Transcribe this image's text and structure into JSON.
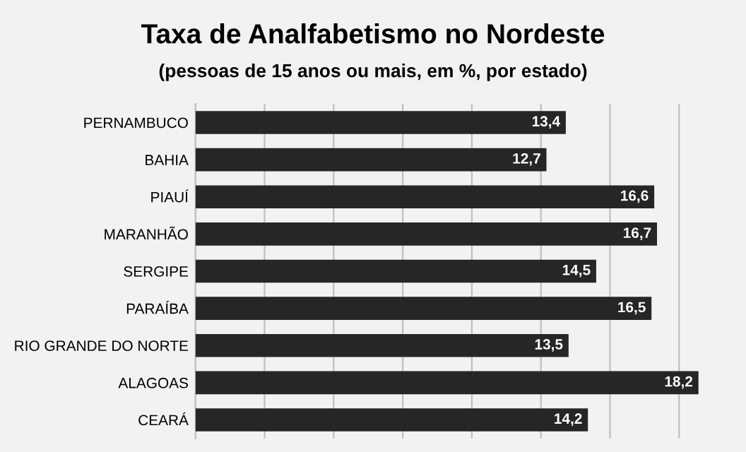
{
  "chart_data": {
    "type": "bar",
    "orientation": "horizontal",
    "title": "Taxa de Analfabetismo no Nordeste",
    "subtitle": "(pessoas de 15 anos ou mais, em %, por estado)",
    "categories": [
      "PERNAMBUCO",
      "BAHIA",
      "PIAUÍ",
      "MARANHÃO",
      "SERGIPE",
      "PARAÍBA",
      "RIO GRANDE DO NORTE",
      "ALAGOAS",
      "CEARÁ"
    ],
    "values": [
      13.4,
      12.7,
      16.6,
      16.7,
      14.5,
      16.5,
      13.5,
      18.2,
      14.2
    ],
    "value_labels": [
      "13,4",
      "12,7",
      "16,6",
      "16,7",
      "14,5",
      "16,5",
      "13,5",
      "18,2",
      "14,2"
    ],
    "color": "#262626",
    "grid": "x",
    "tick_labels": "y"
  }
}
